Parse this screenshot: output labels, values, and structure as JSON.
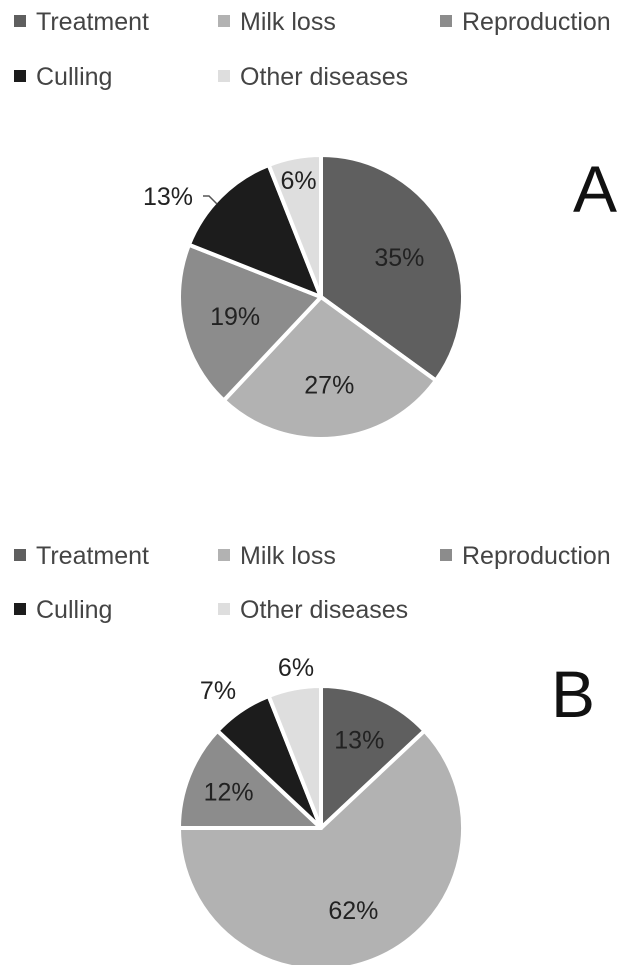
{
  "chart_data": [
    {
      "type": "pie",
      "panel_label": "A",
      "legend": [
        {
          "label": "Treatment",
          "color": "#5f5f5f"
        },
        {
          "label": "Milk loss",
          "color": "#b2b2b2"
        },
        {
          "label": "Reproduction",
          "color": "#8c8c8c"
        },
        {
          "label": "Culling",
          "color": "#1c1c1c"
        },
        {
          "label": "Other diseases",
          "color": "#dedede"
        }
      ],
      "slices": [
        {
          "name": "Treatment",
          "value": 35,
          "label": "35%"
        },
        {
          "name": "Milk loss",
          "value": 27,
          "label": "27%"
        },
        {
          "name": "Reproduction",
          "value": 19,
          "label": "19%"
        },
        {
          "name": "Culling",
          "value": 13,
          "label": "13%"
        },
        {
          "name": "Other diseases",
          "value": 6,
          "label": "6%"
        }
      ],
      "legend_placement": "top"
    },
    {
      "type": "pie",
      "panel_label": "B",
      "legend": [
        {
          "label": "Treatment",
          "color": "#5f5f5f"
        },
        {
          "label": "Milk loss",
          "color": "#b2b2b2"
        },
        {
          "label": "Reproduction",
          "color": "#8c8c8c"
        },
        {
          "label": "Culling",
          "color": "#1c1c1c"
        },
        {
          "label": "Other diseases",
          "color": "#dedede"
        }
      ],
      "slices": [
        {
          "name": "Treatment",
          "value": 13,
          "label": "13%"
        },
        {
          "name": "Milk loss",
          "value": 62,
          "label": "62%"
        },
        {
          "name": "Reproduction",
          "value": 12,
          "label": "12%"
        },
        {
          "name": "Culling",
          "value": 7,
          "label": "7%"
        },
        {
          "name": "Other diseases",
          "value": 6,
          "label": "6%"
        }
      ],
      "legend_placement": "top"
    }
  ]
}
